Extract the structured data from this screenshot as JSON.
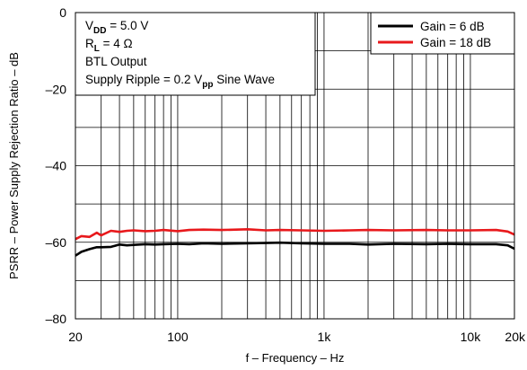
{
  "chart_data": {
    "type": "line",
    "xlabel": "f – Frequency – Hz",
    "ylabel": "PSRR – Power Supply Rejection Ratio – dB",
    "x_scale": "log",
    "xlim": [
      20,
      20000
    ],
    "ylim": [
      -80,
      0
    ],
    "x_ticks": [
      20,
      100,
      1000,
      10000,
      20000
    ],
    "x_tick_labels": [
      "20",
      "100",
      "1k",
      "10k",
      "20k"
    ],
    "y_ticks": [
      0,
      -20,
      -40,
      -60,
      -80
    ],
    "y_tick_labels": [
      "0",
      "–20",
      "–40",
      "–60",
      "–80"
    ],
    "grid": true,
    "legend_position": "top-right",
    "annotation": {
      "lines": [
        {
          "main": "V",
          "sub": "DD",
          "rest": " = 5.0 V"
        },
        {
          "main": "R",
          "sub": "L",
          "rest": " = 4 Ω"
        },
        {
          "main": "BTL Output",
          "sub": "",
          "rest": ""
        },
        {
          "main": "Supply Ripple = 0.2 V",
          "sub": "pp",
          "rest": " Sine Wave"
        }
      ]
    },
    "series": [
      {
        "name": "Gain = 6 dB",
        "color": "#000000",
        "x": [
          20,
          22,
          25,
          28,
          30,
          35,
          40,
          45,
          50,
          60,
          70,
          80,
          100,
          120,
          150,
          200,
          300,
          400,
          500,
          700,
          1000,
          1500,
          2000,
          3000,
          5000,
          7000,
          10000,
          15000,
          18000,
          20000
        ],
        "y": [
          -63.5,
          -62.5,
          -61.8,
          -61.3,
          -61.3,
          -61.2,
          -60.6,
          -60.8,
          -60.7,
          -60.5,
          -60.6,
          -60.5,
          -60.4,
          -60.5,
          -60.3,
          -60.4,
          -60.3,
          -60.2,
          -60.1,
          -60.3,
          -60.4,
          -60.4,
          -60.6,
          -60.4,
          -60.5,
          -60.4,
          -60.5,
          -60.5,
          -60.8,
          -61.7
        ]
      },
      {
        "name": "Gain = 18 dB",
        "color": "#e8191c",
        "x": [
          20,
          22,
          25,
          28,
          30,
          35,
          40,
          45,
          50,
          60,
          70,
          80,
          100,
          120,
          150,
          200,
          300,
          400,
          500,
          700,
          1000,
          1500,
          2000,
          3000,
          5000,
          7000,
          10000,
          15000,
          18000,
          20000
        ],
        "y": [
          -59.2,
          -58.4,
          -58.6,
          -57.5,
          -58.2,
          -57.0,
          -57.3,
          -57.0,
          -56.9,
          -57.1,
          -57.0,
          -56.8,
          -57.1,
          -56.8,
          -56.7,
          -56.8,
          -56.6,
          -56.9,
          -56.8,
          -56.9,
          -57.0,
          -56.9,
          -56.8,
          -56.9,
          -56.8,
          -56.9,
          -56.9,
          -56.8,
          -57.2,
          -58.0
        ]
      }
    ]
  }
}
